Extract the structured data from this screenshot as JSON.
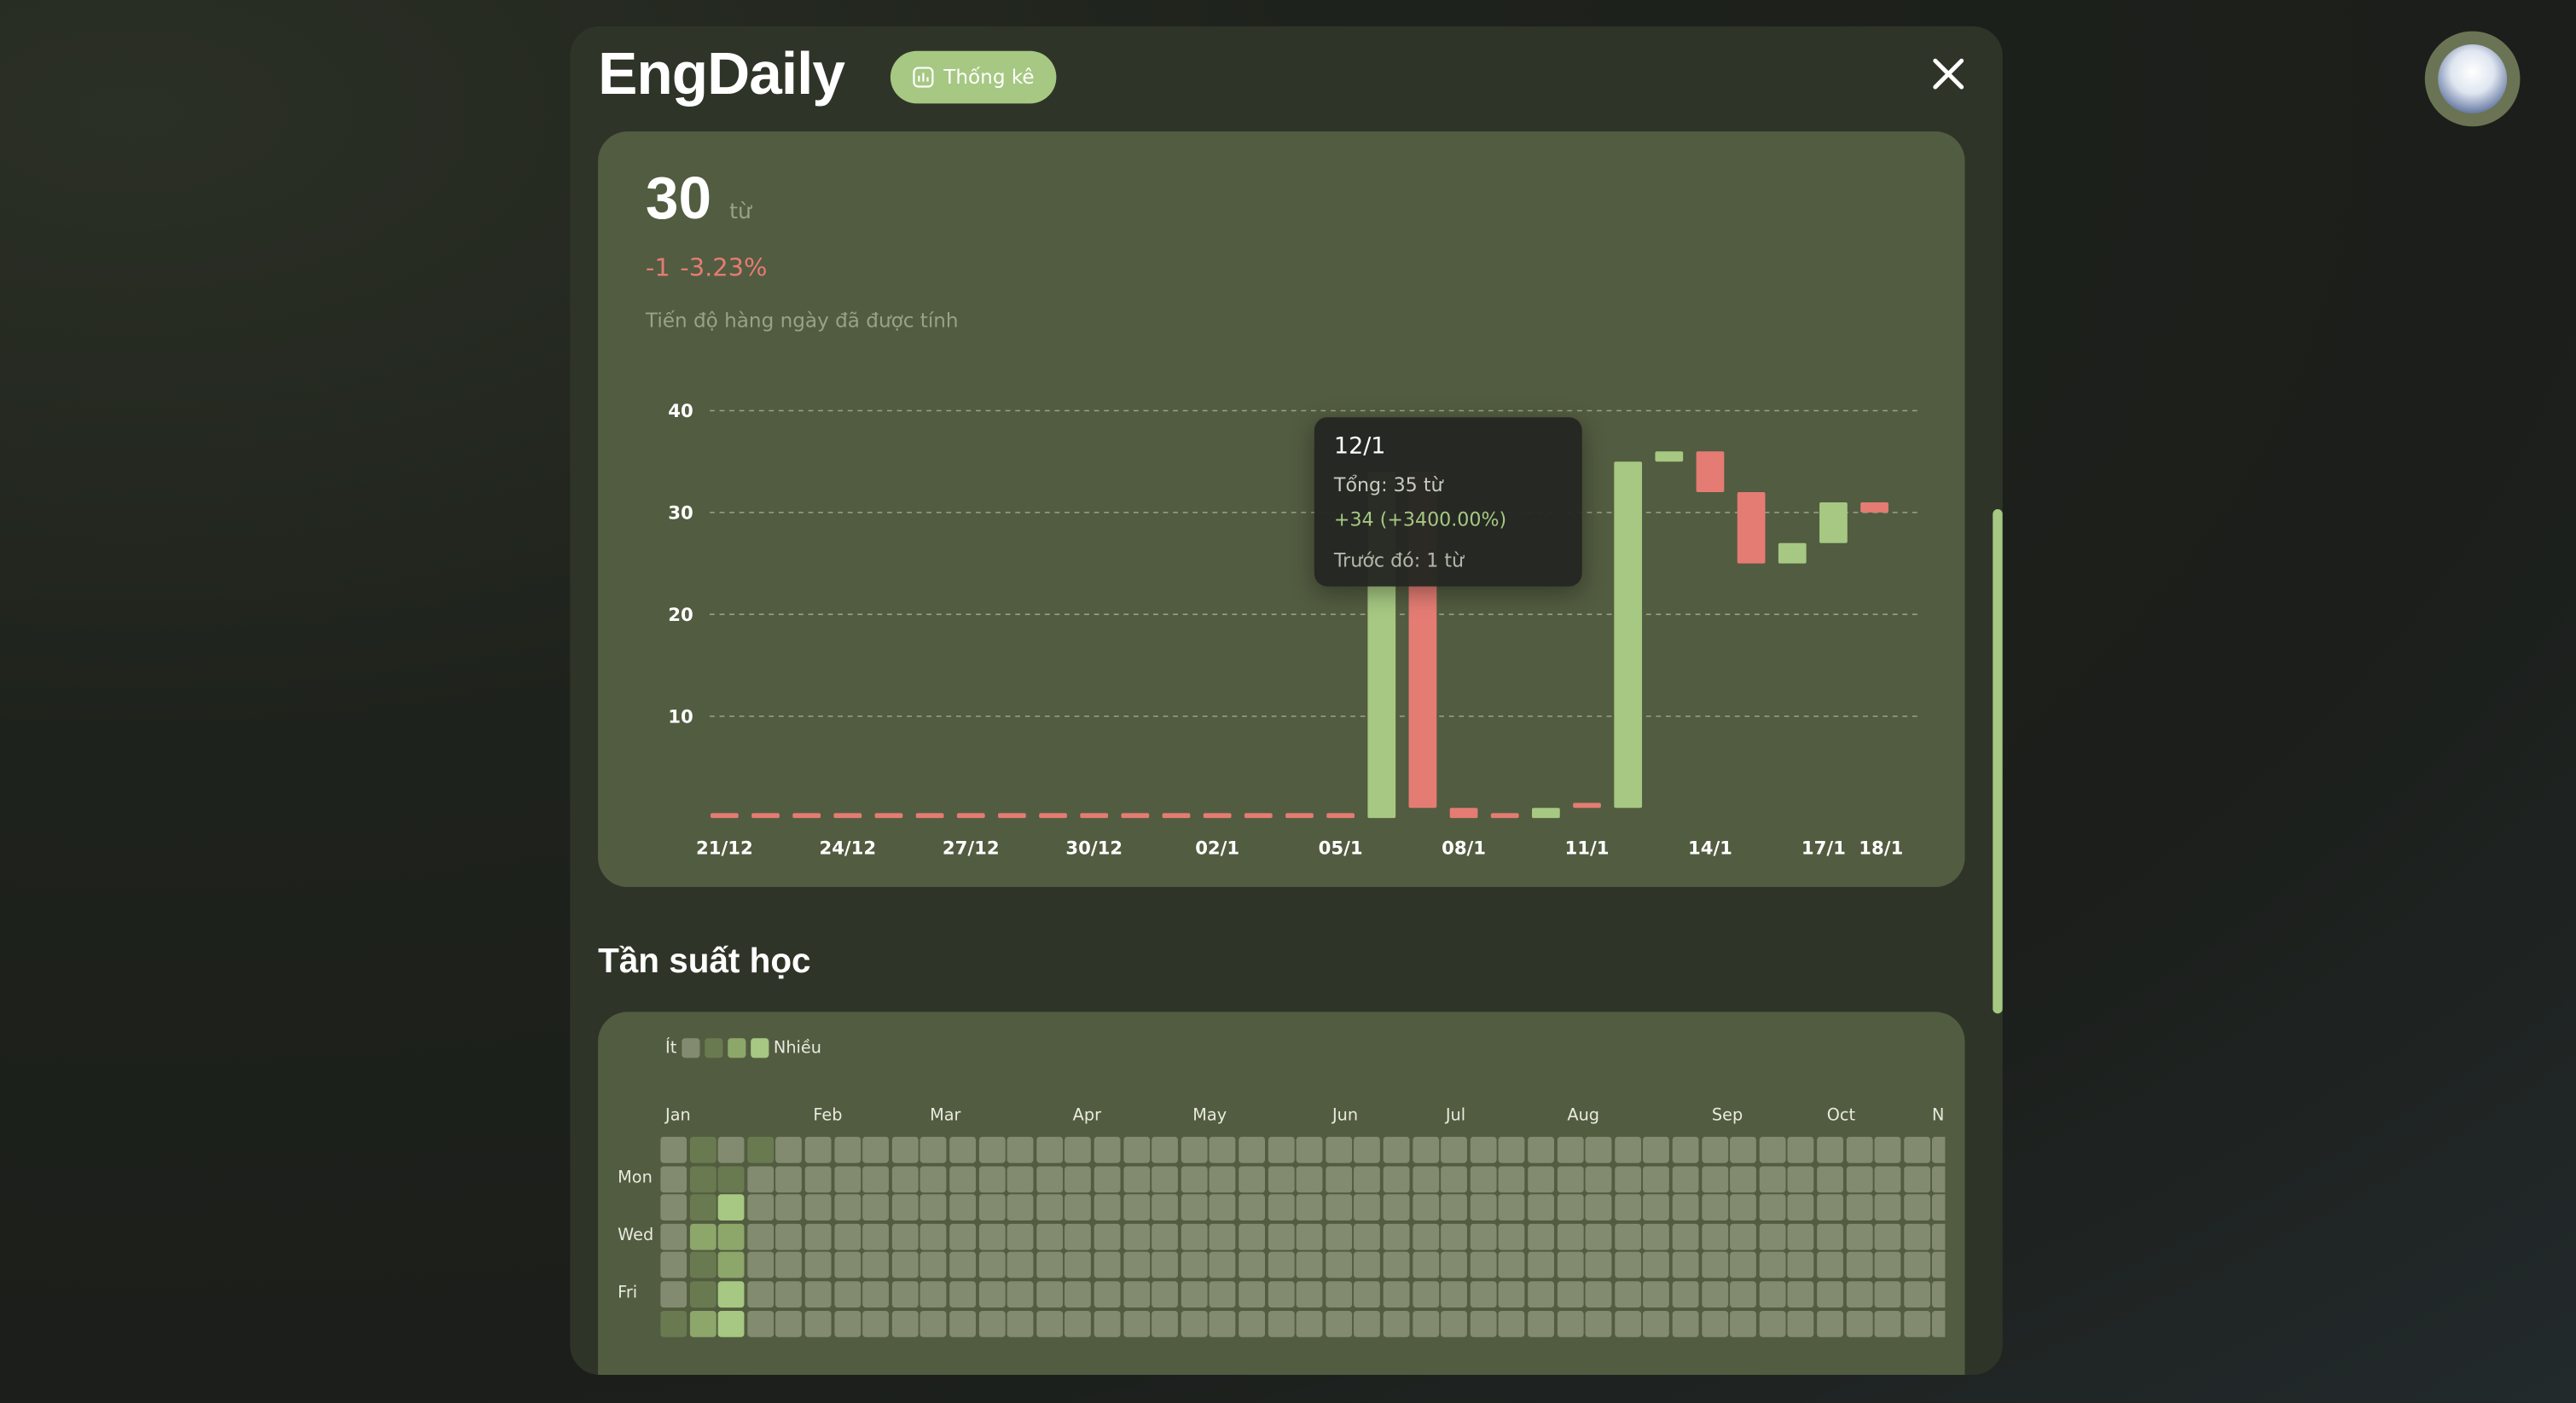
{
  "app": {
    "brand": "EngDaily",
    "stats_button": "Thống kê",
    "close_icon": "close-icon",
    "avatar_icon": "user-avatar"
  },
  "summary": {
    "total": "30",
    "unit": "từ",
    "change": "-1",
    "change_pct": "-3.23%",
    "note": "Tiến độ hàng ngày đã được tính"
  },
  "colors": {
    "up": "#a6c882",
    "down": "#e47c74",
    "accent": "#a6c882"
  },
  "chart_data": {
    "type": "bar",
    "subtype": "waterfall",
    "ylim": [
      0,
      40
    ],
    "yticks": [
      10,
      20,
      30,
      40
    ],
    "grid": true,
    "xticks": [
      "21/12",
      "24/12",
      "27/12",
      "30/12",
      "02/1",
      "05/1",
      "08/1",
      "11/1",
      "14/1",
      "17/1",
      "18/1"
    ],
    "bars": [
      {
        "date": "21/12",
        "from": 0,
        "to": 0
      },
      {
        "date": "22/12",
        "from": 0,
        "to": 0
      },
      {
        "date": "23/12",
        "from": 0,
        "to": 0
      },
      {
        "date": "24/12",
        "from": 0,
        "to": 0
      },
      {
        "date": "25/12",
        "from": 0,
        "to": 0
      },
      {
        "date": "26/12",
        "from": 0,
        "to": 0
      },
      {
        "date": "27/12",
        "from": 0,
        "to": 0
      },
      {
        "date": "28/12",
        "from": 0,
        "to": 0
      },
      {
        "date": "29/12",
        "from": 0,
        "to": 0
      },
      {
        "date": "30/12",
        "from": 0,
        "to": 0
      },
      {
        "date": "31/12",
        "from": 0,
        "to": 0
      },
      {
        "date": "01/1",
        "from": 0,
        "to": 0
      },
      {
        "date": "02/1",
        "from": 0,
        "to": 0
      },
      {
        "date": "03/1",
        "from": 0,
        "to": 0
      },
      {
        "date": "04/1",
        "from": 0,
        "to": 0
      },
      {
        "date": "05/1",
        "from": 0,
        "to": 0
      },
      {
        "date": "06/1",
        "from": 0,
        "to": 34
      },
      {
        "date": "07/1",
        "from": 34,
        "to": 1
      },
      {
        "date": "08/1",
        "from": 1,
        "to": 0
      },
      {
        "date": "09/1",
        "from": 0,
        "to": 0
      },
      {
        "date": "10/1",
        "from": 0,
        "to": 1
      },
      {
        "date": "11/1",
        "from": 1,
        "to": 1
      },
      {
        "date": "12/1",
        "from": 1,
        "to": 35
      },
      {
        "date": "13/1",
        "from": 35,
        "to": 36
      },
      {
        "date": "14/1",
        "from": 36,
        "to": 32
      },
      {
        "date": "15/1",
        "from": 32,
        "to": 25
      },
      {
        "date": "16/1",
        "from": 25,
        "to": 27
      },
      {
        "date": "17/1",
        "from": 27,
        "to": 31
      },
      {
        "date": "18/1",
        "from": 31,
        "to": 30
      }
    ]
  },
  "tooltip": {
    "date": "12/1",
    "total": "Tổng: 35 từ",
    "change": "+34 (+3400.00%)",
    "previous": "Trước đó: 1 từ"
  },
  "frequency": {
    "title": "Tần suất học",
    "legend_less": "Ít",
    "legend_more": "Nhiều",
    "level_colors": [
      "#828a70",
      "#6a7a50",
      "#8da66a",
      "#a6c882"
    ],
    "months": [
      "Jan",
      "Feb",
      "Mar",
      "Apr",
      "May",
      "Jun",
      "Jul",
      "Aug",
      "Sep",
      "Oct",
      "N"
    ],
    "days": [
      "Mon",
      "Wed",
      "Fri"
    ],
    "weeks": [
      [
        0,
        0,
        0,
        0,
        0,
        0,
        1
      ],
      [
        1,
        1,
        1,
        2,
        1,
        1,
        2
      ],
      [
        0,
        1,
        3,
        2,
        2,
        3,
        3
      ],
      [
        1,
        0,
        0,
        0,
        0,
        0,
        0
      ]
    ]
  }
}
